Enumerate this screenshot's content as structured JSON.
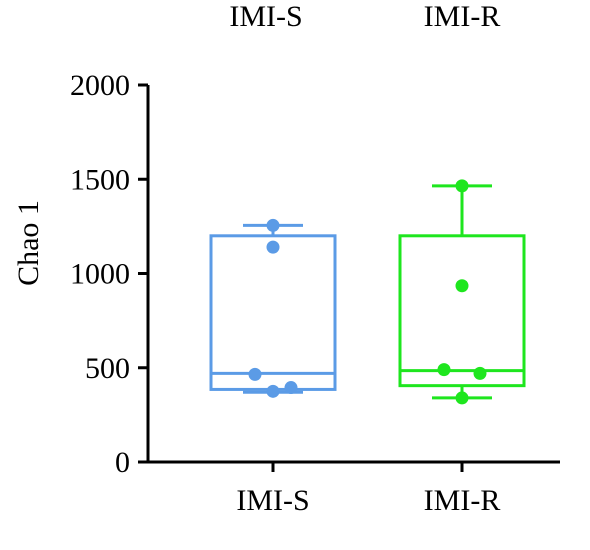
{
  "chart_data": {
    "type": "box",
    "ylabel": "Chao 1",
    "ylim": [
      0,
      2000
    ],
    "yticks": [
      0,
      500,
      1000,
      1500,
      2000
    ],
    "categories": [
      "IMI-S",
      "IMI-R"
    ],
    "legend": {
      "placement": "top",
      "entries": [
        "IMI-S",
        "IMI-R"
      ]
    },
    "series": [
      {
        "category": "IMI-S",
        "color": "#5b9be6",
        "min": 370,
        "q1": 385,
        "median": 470,
        "q3": 1200,
        "max": 1255,
        "points": [
          1255,
          1140,
          465,
          395,
          375
        ]
      },
      {
        "category": "IMI-R",
        "color": "#1ee61e",
        "min": 340,
        "q1": 405,
        "median": 485,
        "q3": 1200,
        "max": 1465,
        "points": [
          1465,
          935,
          490,
          470,
          340
        ]
      }
    ],
    "grid": false
  }
}
